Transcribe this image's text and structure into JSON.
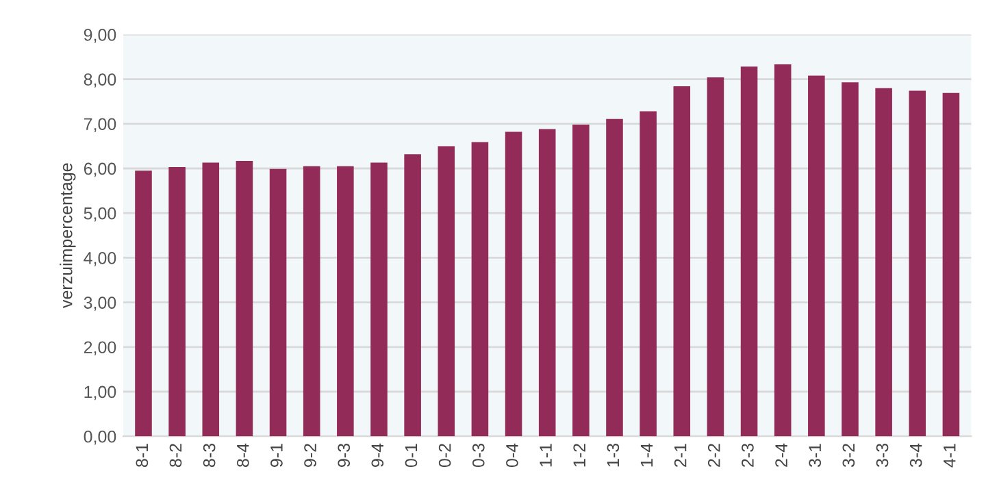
{
  "chart_data": {
    "type": "bar",
    "ylabel": "verzuimpercentage",
    "categories": [
      "8-1",
      "8-2",
      "8-3",
      "8-4",
      "9-1",
      "9-2",
      "9-3",
      "9-4",
      "0-1",
      "0-2",
      "0-3",
      "0-4",
      "1-1",
      "1-2",
      "1-3",
      "1-4",
      "2-1",
      "2-2",
      "2-3",
      "2-4",
      "3-1",
      "3-2",
      "3-3",
      "3-4",
      "4-1"
    ],
    "values": [
      5.95,
      6.03,
      6.13,
      6.17,
      5.99,
      6.05,
      6.05,
      6.13,
      6.32,
      6.5,
      6.59,
      6.82,
      6.88,
      6.98,
      7.11,
      7.28,
      7.84,
      8.04,
      8.28,
      8.33,
      8.08,
      7.93,
      7.8,
      7.74,
      7.69
    ],
    "color": "#922b58",
    "ylim": [
      0,
      9
    ],
    "yticks": [
      {
        "value": 0,
        "label": "0,00"
      },
      {
        "value": 1,
        "label": "1,00"
      },
      {
        "value": 2,
        "label": "2,00"
      },
      {
        "value": 3,
        "label": "3,00"
      },
      {
        "value": 4,
        "label": "4,00"
      },
      {
        "value": 5,
        "label": "5,00"
      },
      {
        "value": 6,
        "label": "6,00"
      },
      {
        "value": 7,
        "label": "7,00"
      },
      {
        "value": 8,
        "label": "8,00"
      },
      {
        "value": 9,
        "label": "9,00"
      }
    ],
    "grid": "y"
  }
}
